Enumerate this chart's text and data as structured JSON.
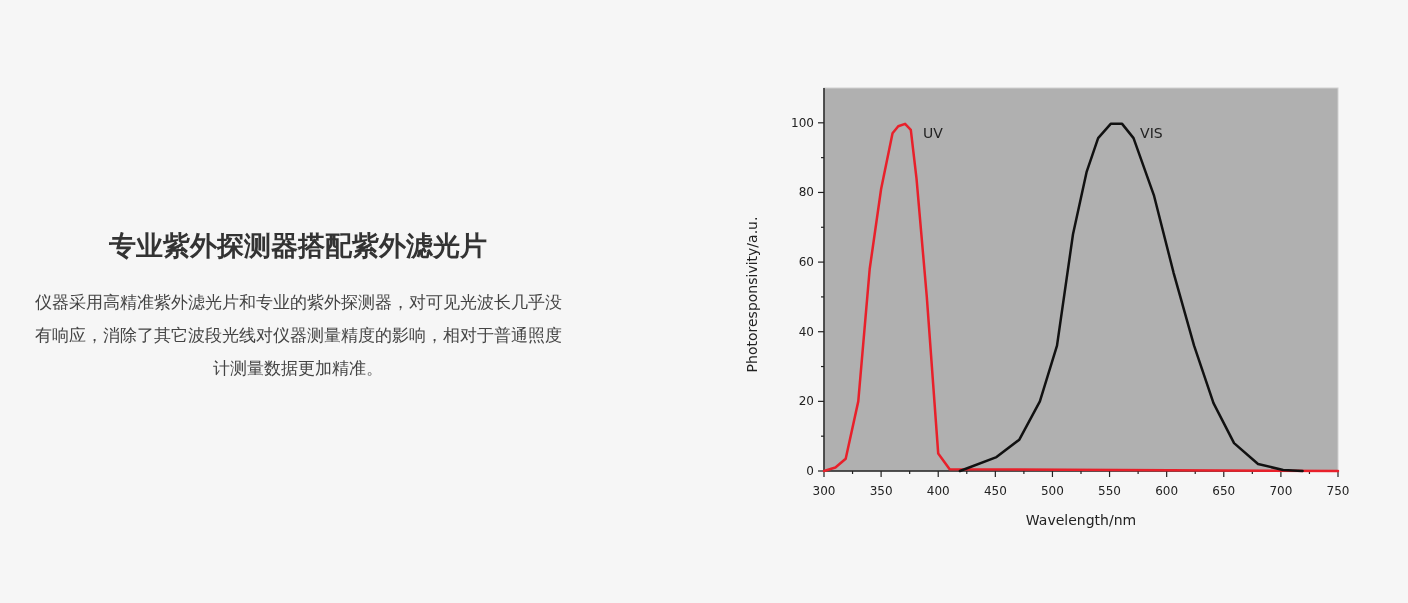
{
  "chart_data": {
    "type": "line",
    "title": "专业紫外探测器搭配紫外滤光片",
    "subtitle": "仪器采用高精准紫外滤光片和专业的紫外探测器，对可见光波长几乎没有响应，消除了其它波段光线对仪器测量精度的影响，相对于普通照度计测量数据更加精准。",
    "xlabel": "Wavelength/nm",
    "ylabel": "Photoresponsivity/a.u.",
    "xlim": [
      300,
      750
    ],
    "ylim": [
      0,
      110
    ],
    "xticks": [
      300,
      {
        "value": 325,
        "label": null
      },
      350,
      {
        "value": 375,
        "label": null
      },
      400,
      {
        "value": 425,
        "label": null
      },
      450,
      {
        "value": 475,
        "label": null
      },
      500,
      {
        "value": 525,
        "label": null
      },
      550,
      {
        "value": 575,
        "label": null
      },
      600,
      {
        "value": 625,
        "label": null
      },
      650,
      {
        "value": 675,
        "label": null
      },
      700,
      {
        "value": 725,
        "label": null
      },
      750
    ],
    "yticks": [
      0,
      {
        "value": 10,
        "label": null
      },
      20,
      {
        "value": 30,
        "label": null
      },
      40,
      {
        "value": 50,
        "label": null
      },
      60,
      {
        "value": 70,
        "label": null
      },
      80,
      {
        "value": 90,
        "label": null
      },
      100
    ],
    "series": [
      {
        "name": "UV",
        "color": "#e8202a",
        "x": [
          300,
          310,
          319,
          330,
          340,
          350,
          360,
          365,
          371,
          376,
          381,
          390,
          400,
          410,
          750
        ],
        "values": [
          0,
          1,
          3.5,
          20,
          58,
          81,
          97,
          99,
          99.7,
          98,
          84,
          50,
          5,
          0.5,
          0
        ]
      },
      {
        "name": "VIS",
        "color": "#111111",
        "x": [
          419,
          451,
          471,
          489,
          504,
          518,
          530,
          540,
          551,
          561,
          571,
          589,
          606,
          624,
          641,
          659,
          680,
          702,
          719
        ],
        "values": [
          0,
          4,
          9,
          20,
          36,
          68,
          86,
          95.6,
          99.7,
          99.7,
          95.6,
          79,
          57,
          36,
          19.5,
          8,
          2,
          0.3,
          0
        ]
      }
    ]
  }
}
